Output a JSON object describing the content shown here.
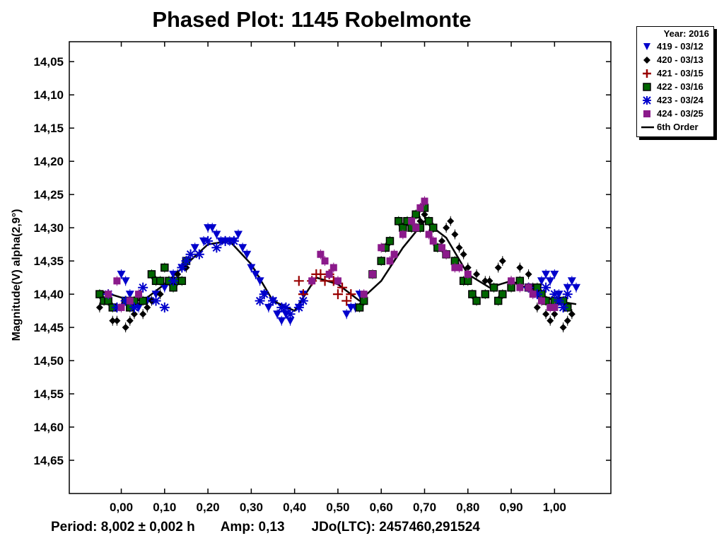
{
  "chart_data": {
    "type": "scatter",
    "title": "Phased Plot: 1145 Robelmonte",
    "ylabel": "Magnitude(V) alpha(2,9°)",
    "xlabel": "",
    "xlim": [
      -0.12,
      1.13
    ],
    "ylim": [
      14.02,
      14.7
    ],
    "y_inverted": true,
    "x_ticks": [
      "0,00",
      "0,10",
      "0,20",
      "0,30",
      "0,40",
      "0,50",
      "0,60",
      "0,70",
      "0,80",
      "0,90",
      "1,00"
    ],
    "y_ticks": [
      "14,05",
      "14,10",
      "14,15",
      "14,20",
      "14,25",
      "14,30",
      "14,35",
      "14,40",
      "14,45",
      "14,50",
      "14,55",
      "14,60",
      "14,65"
    ],
    "legend": {
      "title": "Year: 2016",
      "placement": "top-right, outside plot",
      "entries": [
        {
          "label": "419 - 03/12",
          "marker": "triangle-down",
          "color": "#0000cc"
        },
        {
          "label": "420 - 03/13",
          "marker": "diamond",
          "color": "#000000"
        },
        {
          "label": "421 - 03/15",
          "marker": "plus",
          "color": "#990000"
        },
        {
          "label": "422 - 03/16",
          "marker": "square",
          "color": "#006600"
        },
        {
          "label": "423 - 03/24",
          "marker": "asterisk",
          "color": "#0000cc"
        },
        {
          "label": "424 - 03/25",
          "marker": "square",
          "color": "#8b1a8b"
        },
        {
          "label": "6th Order",
          "marker": "line",
          "color": "#000000"
        }
      ]
    },
    "series": [
      {
        "name": "419 - 03/12",
        "marker": "triangle-down",
        "color": "#0000cc",
        "x": [
          0.0,
          0.01,
          0.02,
          0.04,
          0.06,
          0.08,
          0.1,
          0.12,
          0.14,
          0.17,
          0.19,
          0.2,
          0.21,
          0.22,
          0.23,
          0.24,
          0.25,
          0.26,
          0.27,
          0.28,
          0.29,
          0.3,
          0.31,
          0.32,
          0.33,
          0.34,
          0.35,
          0.36,
          0.37,
          0.38,
          0.39,
          0.41,
          0.42,
          0.52,
          0.53,
          0.54,
          0.55,
          0.97,
          0.98,
          0.99,
          1.0,
          1.01,
          1.02,
          1.03,
          1.04,
          1.05
        ],
        "y": [
          14.37,
          14.38,
          14.4,
          14.42,
          14.41,
          14.4,
          14.39,
          14.37,
          14.36,
          14.33,
          14.32,
          14.3,
          14.3,
          14.31,
          14.32,
          14.32,
          14.32,
          14.32,
          14.31,
          14.33,
          14.34,
          14.36,
          14.37,
          14.38,
          14.4,
          14.42,
          14.41,
          14.43,
          14.44,
          14.43,
          14.44,
          14.42,
          14.4,
          14.43,
          14.42,
          14.42,
          14.4,
          14.38,
          14.37,
          14.38,
          14.37,
          14.4,
          14.41,
          14.39,
          14.38,
          14.39
        ]
      },
      {
        "name": "420 - 03/13",
        "marker": "diamond",
        "color": "#000000",
        "x": [
          -0.05,
          -0.03,
          -0.02,
          -0.01,
          0.01,
          0.02,
          0.03,
          0.05,
          0.06,
          0.07,
          0.09,
          0.11,
          0.13,
          0.15,
          0.69,
          0.7,
          0.72,
          0.74,
          0.75,
          0.76,
          0.77,
          0.78,
          0.79,
          0.8,
          0.82,
          0.84,
          0.85,
          0.87,
          0.88,
          0.9,
          0.92,
          0.94,
          0.95,
          0.96,
          0.97,
          0.98,
          0.99,
          1.0,
          1.01,
          1.02,
          1.03,
          1.04
        ],
        "y": [
          14.42,
          14.41,
          14.44,
          14.44,
          14.45,
          14.44,
          14.43,
          14.43,
          14.42,
          14.41,
          14.4,
          14.38,
          14.37,
          14.36,
          14.29,
          14.28,
          14.3,
          14.32,
          14.3,
          14.29,
          14.31,
          14.33,
          14.34,
          14.36,
          14.37,
          14.38,
          14.38,
          14.36,
          14.35,
          14.38,
          14.36,
          14.37,
          14.39,
          14.42,
          14.41,
          14.43,
          14.44,
          14.43,
          14.41,
          14.45,
          14.44,
          14.43
        ]
      },
      {
        "name": "421 - 03/15",
        "marker": "plus",
        "color": "#990000",
        "x": [
          0.41,
          0.42,
          0.44,
          0.45,
          0.46,
          0.47,
          0.48,
          0.49,
          0.5,
          0.51,
          0.52,
          0.53
        ],
        "y": [
          14.38,
          14.4,
          14.38,
          14.37,
          14.37,
          14.38,
          14.37,
          14.38,
          14.4,
          14.39,
          14.41,
          14.4
        ]
      },
      {
        "name": "422 - 03/16",
        "marker": "square",
        "color": "#006600",
        "x": [
          -0.05,
          -0.04,
          -0.03,
          -0.02,
          0.01,
          0.02,
          0.03,
          0.05,
          0.07,
          0.08,
          0.09,
          0.1,
          0.11,
          0.12,
          0.13,
          0.14,
          0.15,
          0.55,
          0.56,
          0.58,
          0.6,
          0.61,
          0.62,
          0.64,
          0.65,
          0.66,
          0.67,
          0.68,
          0.69,
          0.7,
          0.71,
          0.72,
          0.73,
          0.75,
          0.77,
          0.79,
          0.8,
          0.81,
          0.82,
          0.84,
          0.86,
          0.87,
          0.88,
          0.9,
          0.92,
          0.94,
          0.96,
          0.97,
          0.98,
          1.0,
          1.02,
          1.03
        ],
        "y": [
          14.4,
          14.41,
          14.41,
          14.42,
          14.41,
          14.42,
          14.41,
          14.41,
          14.37,
          14.38,
          14.38,
          14.36,
          14.38,
          14.39,
          14.38,
          14.38,
          14.35,
          14.42,
          14.41,
          14.37,
          14.35,
          14.33,
          14.32,
          14.29,
          14.3,
          14.29,
          14.3,
          14.28,
          14.3,
          14.27,
          14.29,
          14.3,
          14.33,
          14.34,
          14.35,
          14.38,
          14.38,
          14.4,
          14.41,
          14.4,
          14.39,
          14.41,
          14.4,
          14.39,
          14.38,
          14.39,
          14.39,
          14.4,
          14.41,
          14.41,
          14.41,
          14.42
        ]
      },
      {
        "name": "423 - 03/24",
        "marker": "asterisk",
        "color": "#0000cc",
        "x": [
          -0.03,
          -0.01,
          0.01,
          0.03,
          0.05,
          0.08,
          0.1,
          0.12,
          0.14,
          0.15,
          0.16,
          0.18,
          0.2,
          0.22,
          0.24,
          0.26,
          0.32,
          0.33,
          0.35,
          0.37,
          0.38,
          0.39,
          0.41,
          0.42,
          0.94,
          0.96,
          0.98,
          1.0,
          1.01,
          1.02,
          1.03
        ],
        "y": [
          14.4,
          14.42,
          14.41,
          14.42,
          14.39,
          14.41,
          14.42,
          14.38,
          14.36,
          14.35,
          14.34,
          14.34,
          14.32,
          14.33,
          14.32,
          14.32,
          14.41,
          14.4,
          14.41,
          14.42,
          14.42,
          14.43,
          14.42,
          14.41,
          14.39,
          14.4,
          14.39,
          14.4,
          14.41,
          14.42,
          14.4
        ]
      },
      {
        "name": "424 - 03/25",
        "marker": "square",
        "color": "#8b1a8b",
        "x": [
          -0.03,
          -0.01,
          0.0,
          0.02,
          0.04,
          0.44,
          0.46,
          0.47,
          0.48,
          0.49,
          0.5,
          0.56,
          0.58,
          0.6,
          0.62,
          0.63,
          0.65,
          0.67,
          0.68,
          0.69,
          0.7,
          0.71,
          0.72,
          0.74,
          0.75,
          0.77,
          0.78,
          0.8,
          0.9,
          0.92,
          0.94,
          0.95,
          0.97,
          0.99,
          1.0
        ],
        "y": [
          14.4,
          14.38,
          14.42,
          14.41,
          14.4,
          14.38,
          14.34,
          14.35,
          14.37,
          14.36,
          14.38,
          14.4,
          14.37,
          14.33,
          14.35,
          14.34,
          14.31,
          14.29,
          14.3,
          14.27,
          14.26,
          14.31,
          14.32,
          14.33,
          14.34,
          14.36,
          14.36,
          14.37,
          14.38,
          14.39,
          14.39,
          14.4,
          14.41,
          14.42,
          14.42
        ]
      }
    ],
    "fit": {
      "name": "6th Order",
      "color": "#000000",
      "x": [
        -0.05,
        0.0,
        0.05,
        0.1,
        0.15,
        0.2,
        0.25,
        0.3,
        0.35,
        0.4,
        0.45,
        0.5,
        0.55,
        0.6,
        0.65,
        0.7,
        0.75,
        0.8,
        0.85,
        0.9,
        0.95,
        1.0,
        1.05
      ],
      "y": [
        14.395,
        14.405,
        14.41,
        14.385,
        14.355,
        14.325,
        14.32,
        14.355,
        14.41,
        14.425,
        14.375,
        14.385,
        14.41,
        14.38,
        14.33,
        14.29,
        14.315,
        14.37,
        14.39,
        14.38,
        14.395,
        14.41,
        14.415
      ]
    }
  },
  "footer": {
    "period": "Period: 8,002 ± 0,002 h",
    "amp": "Amp: 0,13",
    "jdo": "JDo(LTC): 2457460,291524"
  }
}
